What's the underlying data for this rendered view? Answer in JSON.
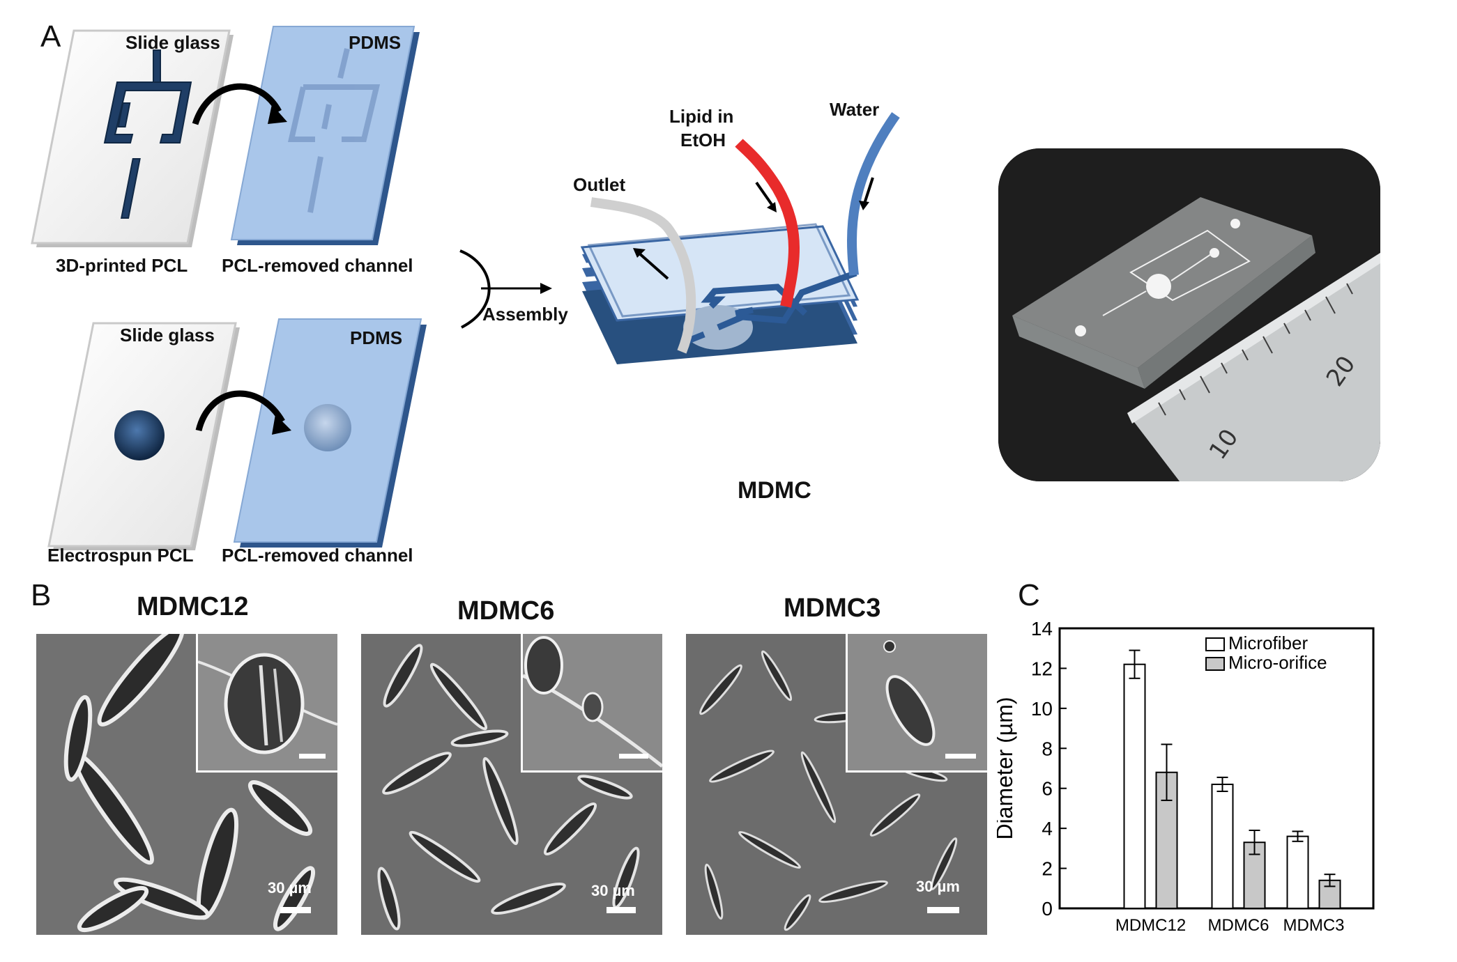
{
  "panel_a": {
    "label": "A",
    "slide1_label": "Slide glass",
    "pdms1_label": "PDMS",
    "caption1_left": "3D-printed PCL",
    "caption1_right": "PCL-removed channel",
    "slide2_label": "Slide glass",
    "pdms2_label": "PDMS",
    "caption2_left": "Electrospun PCL",
    "caption2_right": "PCL-removed channel",
    "assembly_label": "Assembly",
    "lipid_label_line1": "Lipid in",
    "lipid_label_line2": "EtOH",
    "water_label": "Water",
    "outlet_label": "Outlet",
    "device_label": "MDMC",
    "ruler_numbers": [
      "10",
      "20"
    ]
  },
  "panel_b": {
    "label": "B",
    "images": [
      {
        "title": "MDMC12",
        "scale": "30 µm"
      },
      {
        "title": "MDMC6",
        "scale": "30 µm"
      },
      {
        "title": "MDMC3",
        "scale": "30 µm"
      }
    ]
  },
  "panel_c": {
    "label": "C",
    "chart_data": {
      "type": "bar",
      "categories": [
        "MDMC12",
        "MDMC6",
        "MDMC3"
      ],
      "series": [
        {
          "name": "Microfiber",
          "values": [
            12.2,
            6.2,
            3.6
          ],
          "errors": [
            0.7,
            0.35,
            0.25
          ],
          "color": "#ffffff"
        },
        {
          "name": "Micro-orifice",
          "values": [
            6.8,
            3.3,
            1.4
          ],
          "errors": [
            1.4,
            0.6,
            0.3
          ],
          "color": "#c8c8c8"
        }
      ],
      "xlabel": "",
      "ylabel": "Diameter (µm)",
      "ylim": [
        0,
        14
      ],
      "yticks": [
        "0",
        "2",
        "4",
        "6",
        "8",
        "10",
        "12",
        "14"
      ],
      "grid": false,
      "legend": "top-right"
    }
  }
}
